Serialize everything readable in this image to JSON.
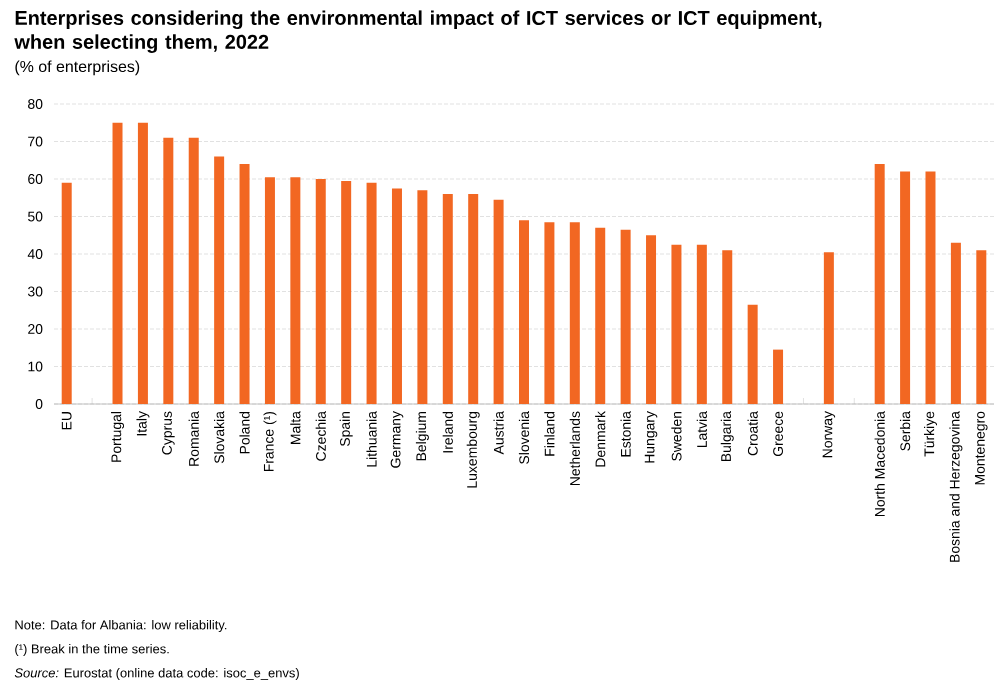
{
  "chart_data": {
    "type": "bar",
    "title": "Enterprises considering the environmental impact of ICT services or ICT equipment, when selecting them, 2022",
    "subtitle": "(% of enterprises)",
    "categories": [
      "EU",
      null,
      "Portugal",
      "Italy",
      "Cyprus",
      "Romania",
      "Slovakia",
      "Poland",
      "France (¹)",
      "Malta",
      "Czechia",
      "Spain",
      "Lithuania",
      "Germany",
      "Belgium",
      "Ireland",
      "Luxembourg",
      "Austria",
      "Slovenia",
      "Finland",
      "Netherlands",
      "Denmark",
      "Estonia",
      "Hungary",
      "Sweden",
      "Latvia",
      "Bulgaria",
      "Croatia",
      "Greece",
      null,
      "Norway",
      null,
      "North Macedonia",
      "Serbia",
      "Türkiye",
      "Bosnia and Herzegovina",
      "Montenegro"
    ],
    "values": [
      59,
      null,
      75,
      75,
      71,
      71,
      66,
      64,
      60.5,
      60.5,
      60,
      59.5,
      59,
      57.5,
      57,
      56,
      56,
      54.5,
      49,
      48.5,
      48.5,
      47,
      46.5,
      45,
      42.5,
      42.5,
      41,
      26.5,
      14.5,
      null,
      40.5,
      null,
      64,
      62,
      62,
      43,
      41
    ],
    "color": "#f26722",
    "ylim": [
      0,
      80
    ],
    "yticks": [
      0,
      10,
      20,
      30,
      40,
      50,
      60,
      70,
      80
    ],
    "grid": "y",
    "annotations": [
      "Note: Data for Albania: low reliability.",
      "(¹) Break in the time series.",
      "*Source:* Eurostat (online data code: isoc_e_envs)"
    ]
  }
}
